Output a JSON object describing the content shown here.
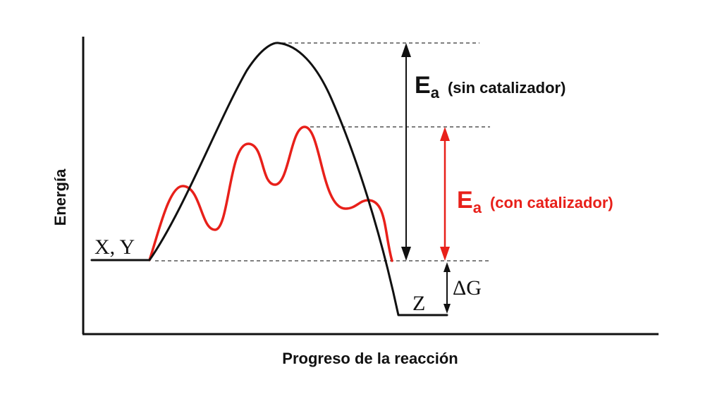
{
  "axes": {
    "y_label": "Energía",
    "x_label": "Progreso de la reacción"
  },
  "labels": {
    "reactants": "X, Y",
    "product": "Z",
    "delta_g": "ΔG"
  },
  "ea_uncatalyzed": {
    "main": "E",
    "sub": "a",
    "qualifier": "(sin catalizador)"
  },
  "ea_catalyzed": {
    "main": "E",
    "sub": "a",
    "qualifier": "(con catalizador)"
  },
  "colors": {
    "uncatalyzed": "#111111",
    "catalyzed": "#e8201a",
    "axis": "#111111",
    "guide": "#555555"
  }
}
